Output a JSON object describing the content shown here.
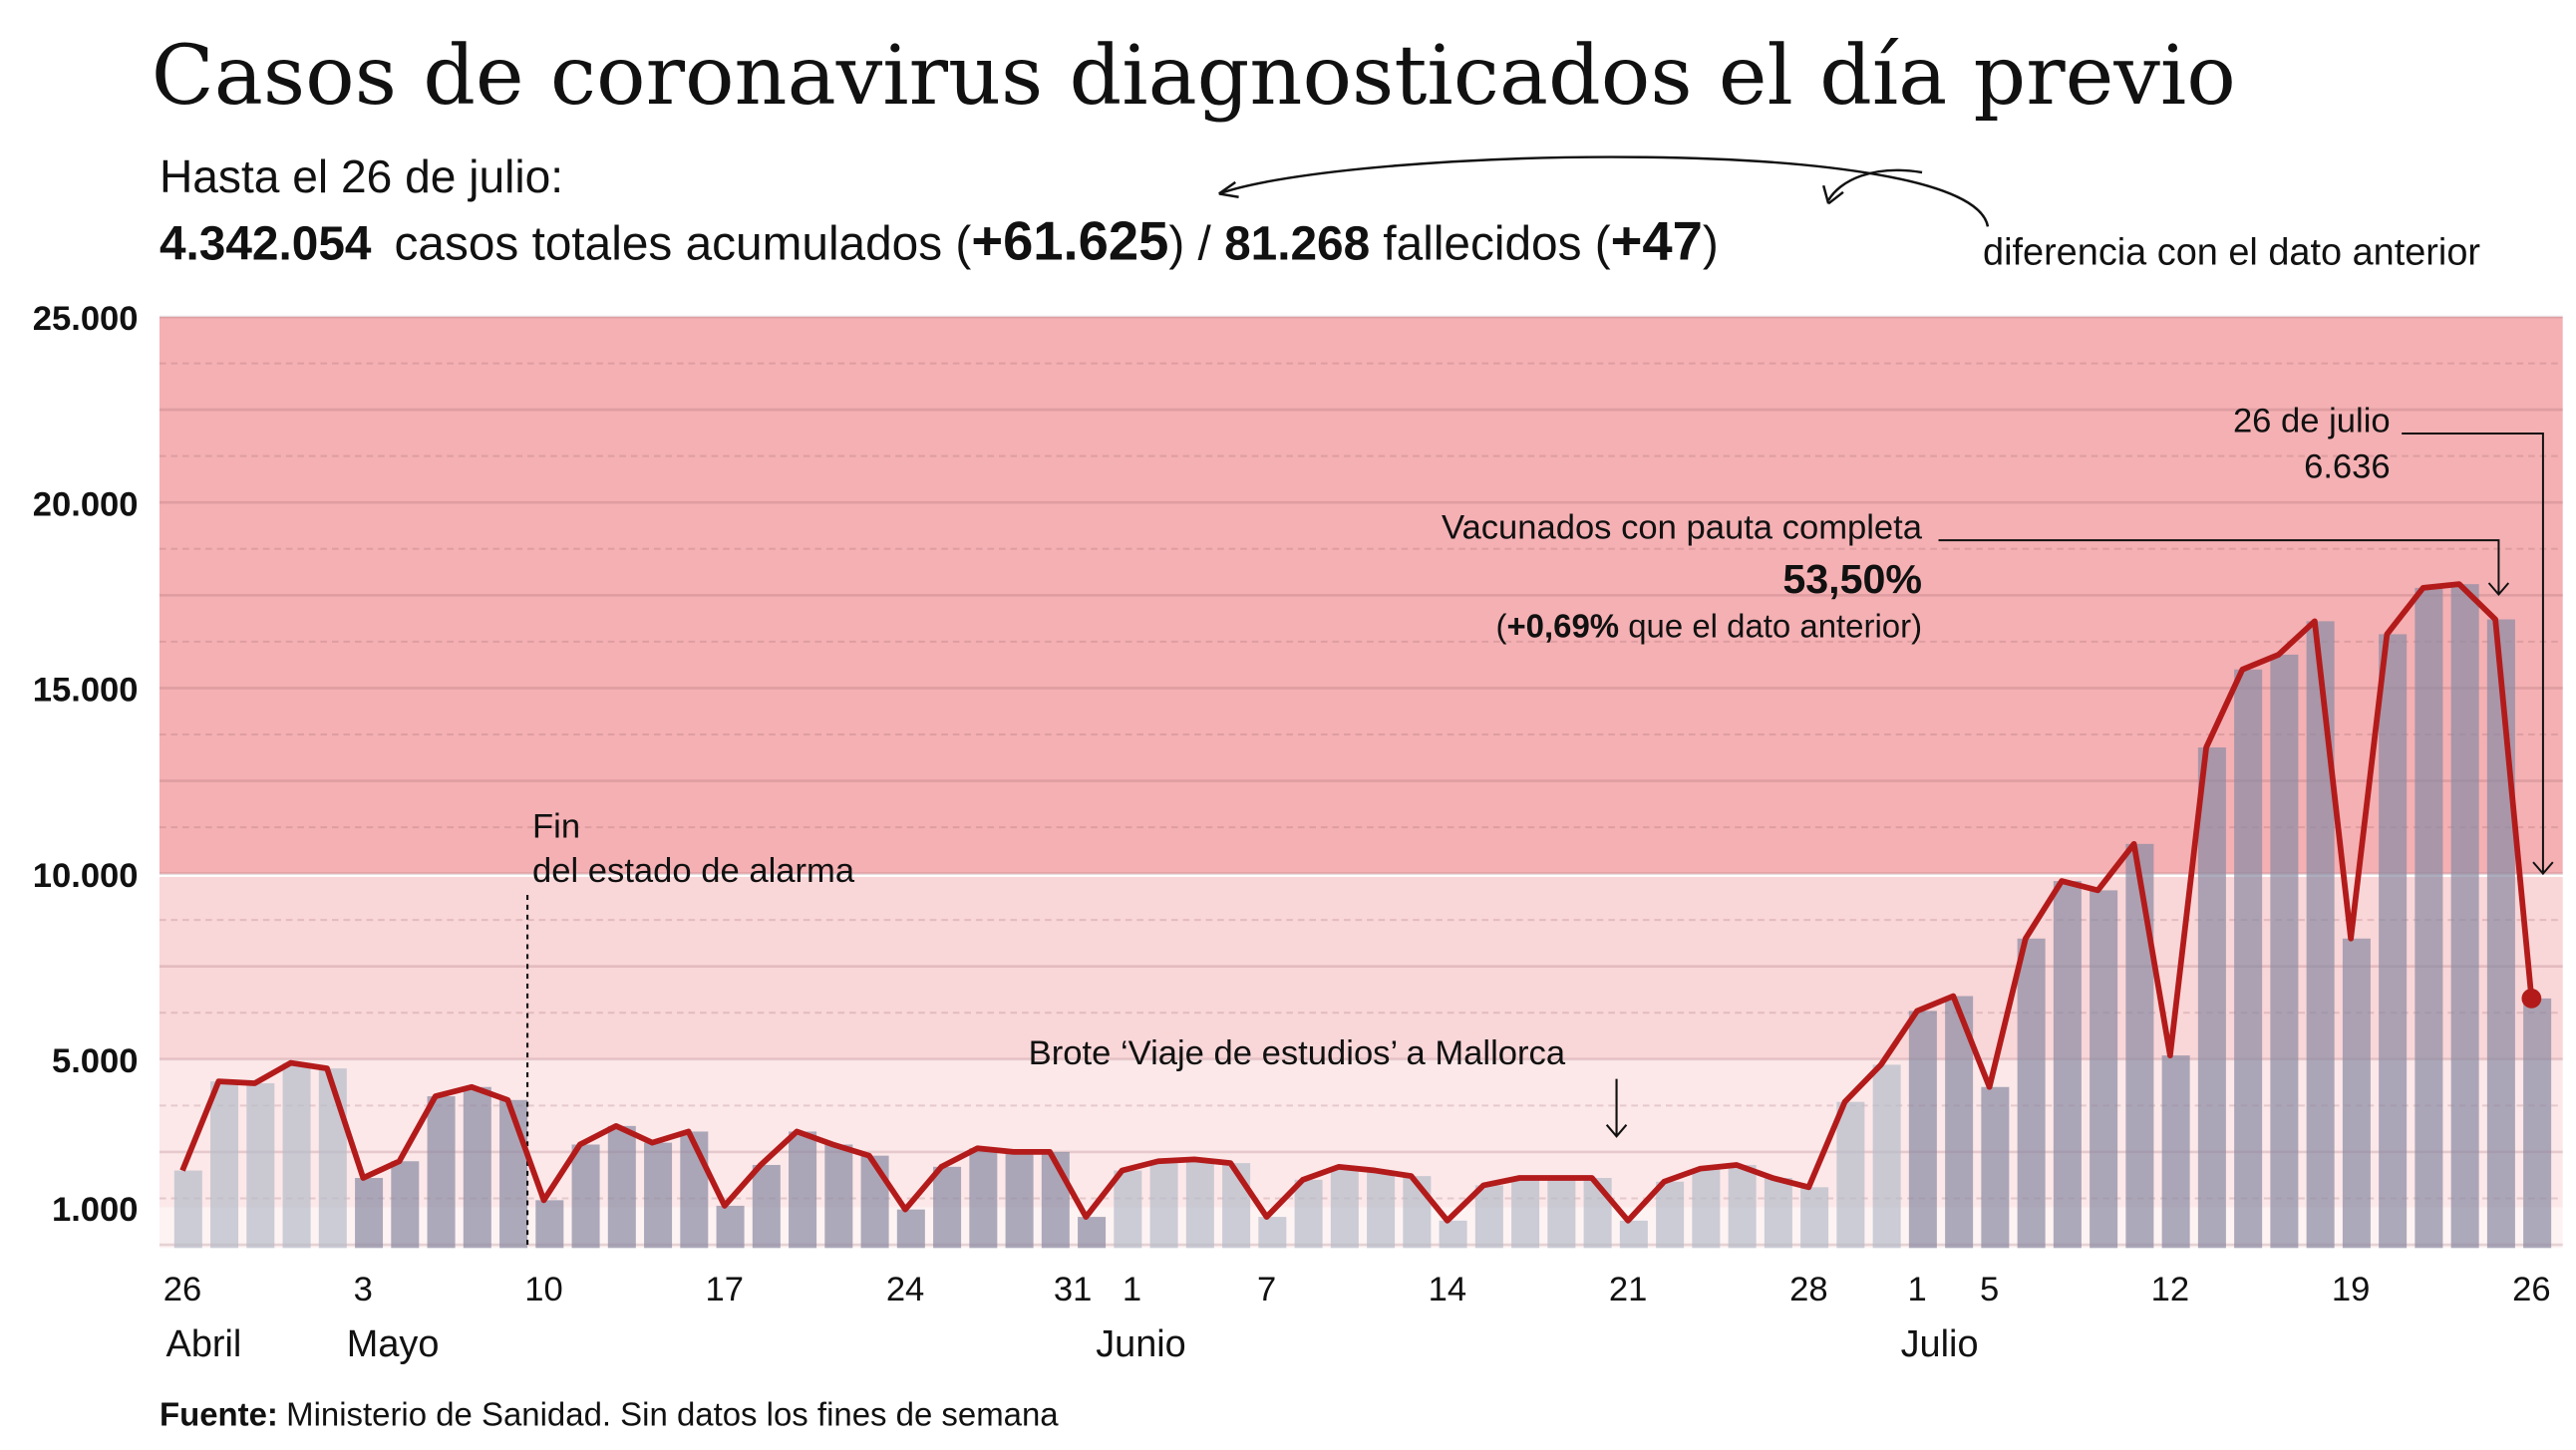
{
  "title": "Casos de coronavirus diagnosticados el día previo",
  "summary": {
    "date_line": "Hasta el 26 de julio:",
    "total_cases": "4.342.054",
    "total_cases_label": "casos totales acumulados (",
    "cases_diff": "+61.625",
    "sep": ") / ",
    "deaths": "81.268",
    "deaths_label": "fallecidos (",
    "deaths_diff": "+47",
    "close": ")",
    "diff_note": "diferencia con el dato anterior"
  },
  "source": {
    "label": "Fuente:",
    "text": "Ministerio de Sanidad. Sin datos los fines de semana"
  },
  "annotations": {
    "alarm_1": "Fin",
    "alarm_2": "del estado de alarma",
    "outbreak": "Brote ‘Viaje de estudios’ a Mallorca",
    "vacc_label": "Vacunados con pauta completa",
    "vacc_value": "53,50%",
    "vacc_open": "(",
    "vacc_diff": "+0,69%",
    "vacc_rest": " que el dato anterior)",
    "last_date": "26 de julio",
    "last_value": "6.636"
  },
  "colors": {
    "line": "#b31b1b",
    "band_high": "#f4b0b3",
    "band_mid": "#f9d6d8",
    "band_low": "#fce8e9",
    "bar_dark": "#8c8ca3",
    "bar_light": "#b7bdc9"
  },
  "chart_data": {
    "type": "bar+line",
    "ylim": [
      0,
      25000
    ],
    "yticks": [
      {
        "v": 1000,
        "label": "1.000"
      },
      {
        "v": 5000,
        "label": "5.000"
      },
      {
        "v": 10000,
        "label": "10.000"
      },
      {
        "v": 15000,
        "label": "15.000"
      },
      {
        "v": 20000,
        "label": "20.000"
      },
      {
        "v": 25000,
        "label": "25.000"
      }
    ],
    "xticks": [
      {
        "i": 0,
        "label": "26"
      },
      {
        "i": 5,
        "label": "3"
      },
      {
        "i": 10,
        "label": "10"
      },
      {
        "i": 15,
        "label": "17"
      },
      {
        "i": 20,
        "label": "24"
      },
      {
        "i": 25,
        "label": "31"
      },
      {
        "i": 26,
        "label": "1"
      },
      {
        "i": 30,
        "label": "7"
      },
      {
        "i": 35,
        "label": "14"
      },
      {
        "i": 40,
        "label": "21"
      },
      {
        "i": 45,
        "label": "28"
      },
      {
        "i": 48,
        "label": "1"
      },
      {
        "i": 50,
        "label": "5"
      },
      {
        "i": 55,
        "label": "12"
      },
      {
        "i": 60,
        "label": "19"
      },
      {
        "i": 65,
        "label": "26"
      }
    ],
    "months": [
      {
        "i": 0,
        "label": "Abril"
      },
      {
        "i": 5,
        "label": "Mayo"
      },
      {
        "i": 26,
        "label": "Junio"
      },
      {
        "i": 48,
        "label": "Julio"
      }
    ],
    "month_of_point": [
      "abr",
      "abr",
      "abr",
      "abr",
      "abr",
      "may",
      "may",
      "may",
      "may",
      "may",
      "may",
      "may",
      "may",
      "may",
      "may",
      "may",
      "may",
      "may",
      "may",
      "may",
      "may",
      "may",
      "may",
      "may",
      "may",
      "may",
      "jun",
      "jun",
      "jun",
      "jun",
      "jun",
      "jun",
      "jun",
      "jun",
      "jun",
      "jun",
      "jun",
      "jun",
      "jun",
      "jun",
      "jun",
      "jun",
      "jun",
      "jun",
      "jun",
      "jun",
      "jun",
      "jun",
      "jul",
      "jul",
      "jul",
      "jul",
      "jul",
      "jul",
      "jul",
      "jul",
      "jul",
      "jul",
      "jul",
      "jul",
      "jul",
      "jul",
      "jul",
      "jul",
      "jul",
      "jul"
    ],
    "values": [
      2000,
      4400,
      4350,
      4900,
      4750,
      1800,
      2250,
      4000,
      4250,
      3900,
      1200,
      2700,
      3200,
      2750,
      3050,
      1050,
      2150,
      3050,
      2700,
      2400,
      950,
      2100,
      2600,
      2500,
      2500,
      750,
      2000,
      2250,
      2300,
      2200,
      750,
      1750,
      2100,
      2000,
      1850,
      650,
      1600,
      1800,
      1800,
      1800,
      650,
      1700,
      2050,
      2150,
      1800,
      1550,
      3850,
      4850,
      6300,
      6700,
      4250,
      8250,
      9800,
      9550,
      10800,
      5100,
      13400,
      15500,
      15900,
      16800,
      8250,
      16450,
      17700,
      17800,
      16850,
      6636
    ]
  }
}
